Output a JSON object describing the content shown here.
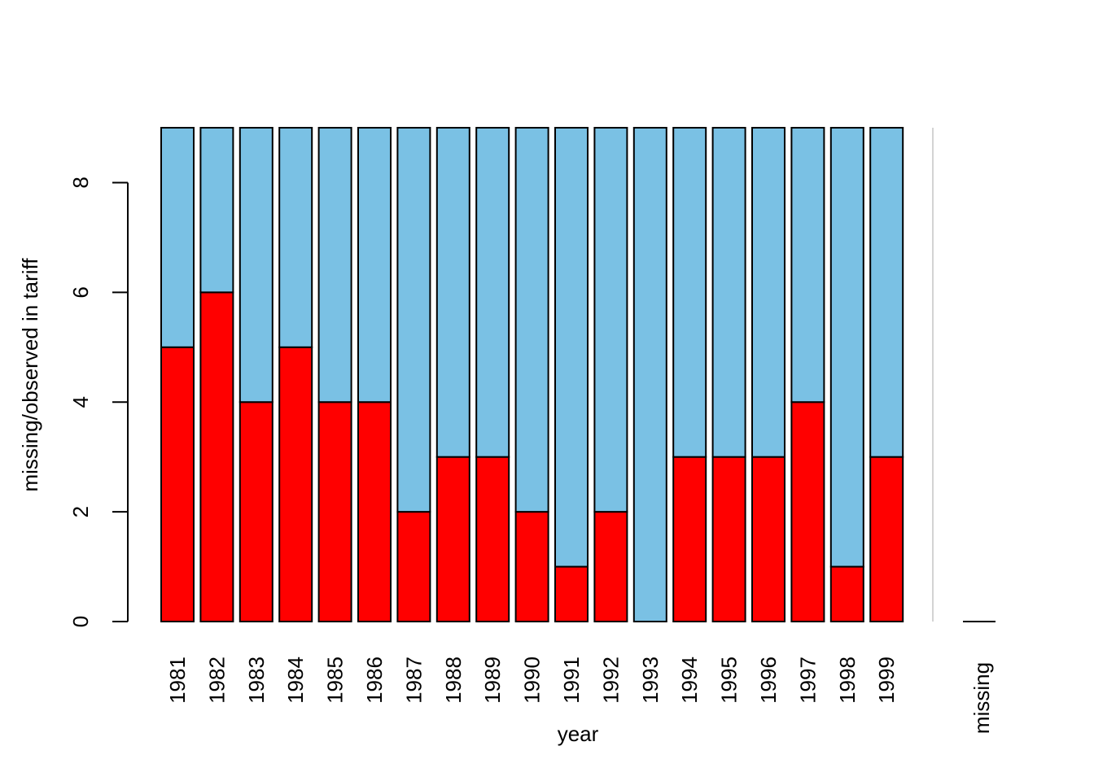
{
  "chart_data": {
    "type": "bar",
    "stacked": true,
    "categories": [
      "1981",
      "1982",
      "1983",
      "1984",
      "1985",
      "1986",
      "1987",
      "1988",
      "1989",
      "1990",
      "1991",
      "1992",
      "1993",
      "1994",
      "1995",
      "1996",
      "1997",
      "1998",
      "1999"
    ],
    "series": [
      {
        "values": [
          5,
          6,
          4,
          5,
          4,
          4,
          2,
          3,
          3,
          2,
          1,
          2,
          0,
          3,
          3,
          3,
          4,
          1,
          3
        ]
      },
      {
        "values": [
          4,
          3,
          5,
          4,
          5,
          5,
          7,
          6,
          6,
          7,
          8,
          7,
          9,
          6,
          6,
          6,
          5,
          8,
          6
        ]
      }
    ],
    "xlabel": "year",
    "ylabel": "missing/observed in tariff",
    "ylim": [
      0,
      9
    ],
    "yticks": [
      0,
      2,
      4,
      6,
      8
    ],
    "missing_category": {
      "label": "missing",
      "value": 0
    },
    "grid": false,
    "legend": "none"
  },
  "colors": {
    "missing": "#ff0000",
    "observed": "#7ac1e4",
    "separator": "#d3d3d3",
    "outline": "#000000"
  }
}
